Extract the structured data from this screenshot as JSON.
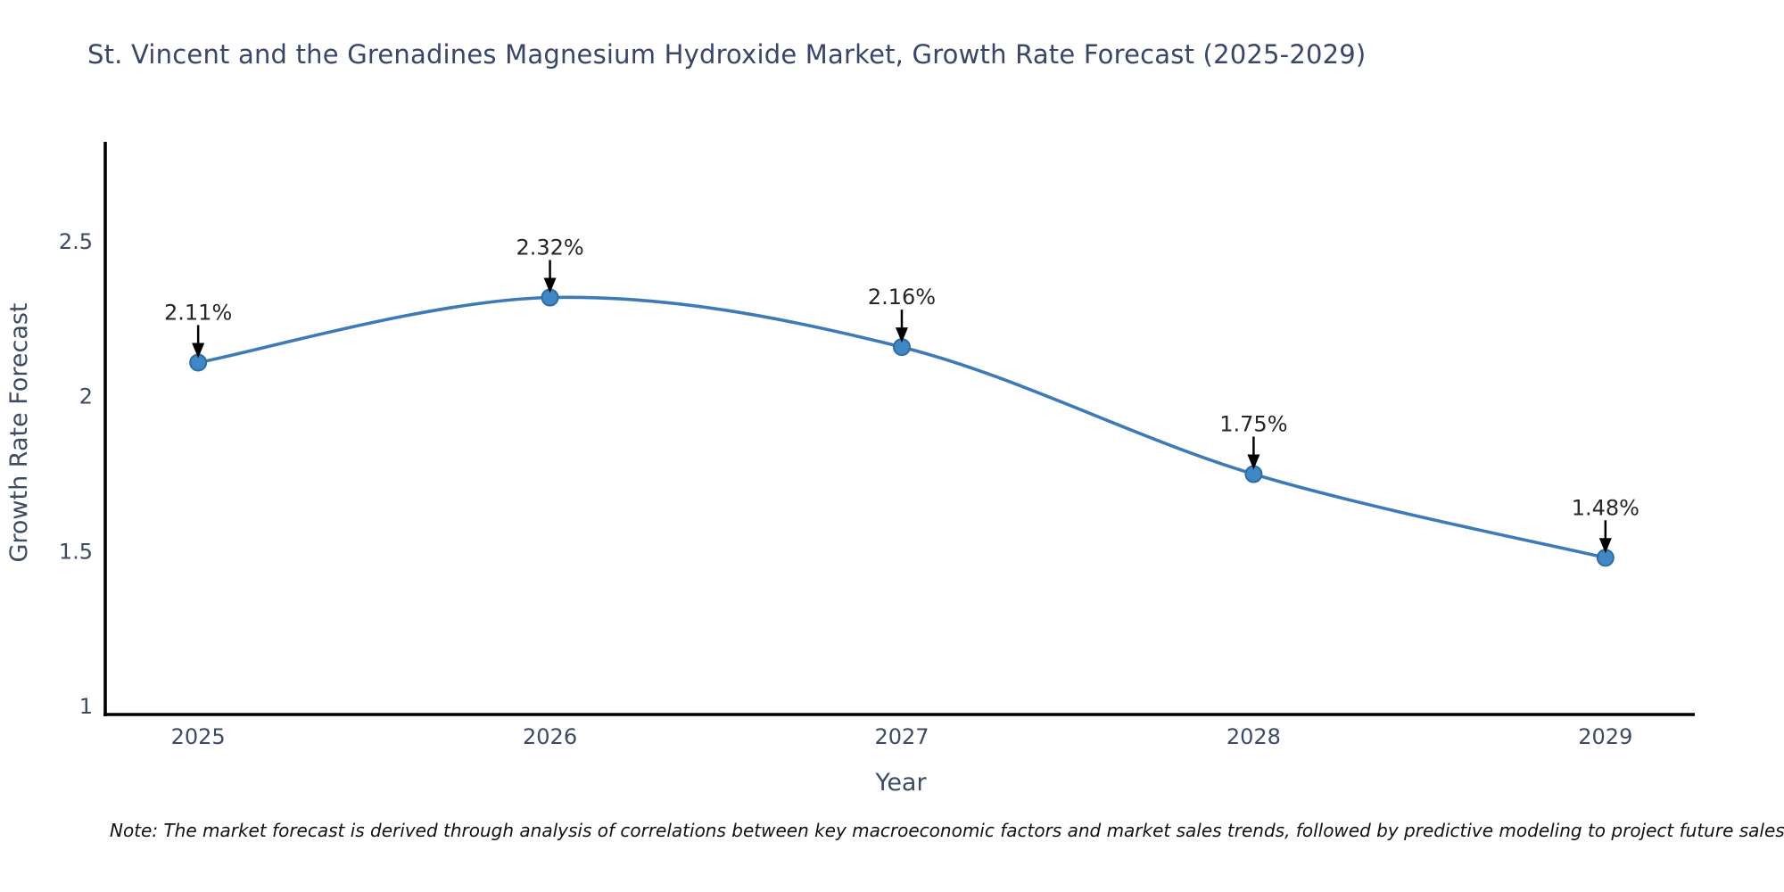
{
  "title": {
    "text": "St. Vincent and the Grenadines Magnesium Hydroxide Market, Growth Rate Forecast (2025-2029)",
    "color": "#3a4668"
  },
  "note": {
    "text": "Note: The market forecast is derived through analysis of correlations between key macroeconomic factors and market sales trends, followed by predictive modeling to project future sales",
    "color": "#111111"
  },
  "chart_data": {
    "type": "line",
    "title": "St. Vincent and the Grenadines Magnesium Hydroxide Market, Growth Rate Forecast (2025-2029)",
    "x": [
      2025,
      2026,
      2027,
      2028,
      2029
    ],
    "series": [
      {
        "name": "Growth Rate Forecast",
        "values": [
          2.11,
          2.32,
          2.16,
          1.75,
          1.48
        ]
      }
    ],
    "point_labels": [
      "2.11%",
      "2.32%",
      "2.16%",
      "1.75%",
      "1.48%"
    ],
    "xlabel": "Year",
    "ylabel": "Growth Rate Forecast",
    "xtick_labels": [
      "2025",
      "2026",
      "2027",
      "2028",
      "2029"
    ],
    "yticks": [
      1,
      1.5,
      2,
      2.5
    ],
    "ytick_labels": [
      "1",
      "1.5",
      "2",
      "2.5"
    ],
    "xlim": [
      2024.741,
      2029.254
    ],
    "ylim": [
      0.977,
      2.8195
    ],
    "grid": false,
    "legend": "none",
    "smooth_curve": true,
    "annotation_arrows": true,
    "colors": {
      "line": "#3e7bb6",
      "marker_fill": "#3f87c5",
      "marker_edge": "#2e6da4",
      "axis_spine": "#000000",
      "tick_label": "#3d4a63",
      "axis_title": "#3d4a63",
      "annotation_text": "#262626",
      "arrow": "#000000"
    }
  }
}
